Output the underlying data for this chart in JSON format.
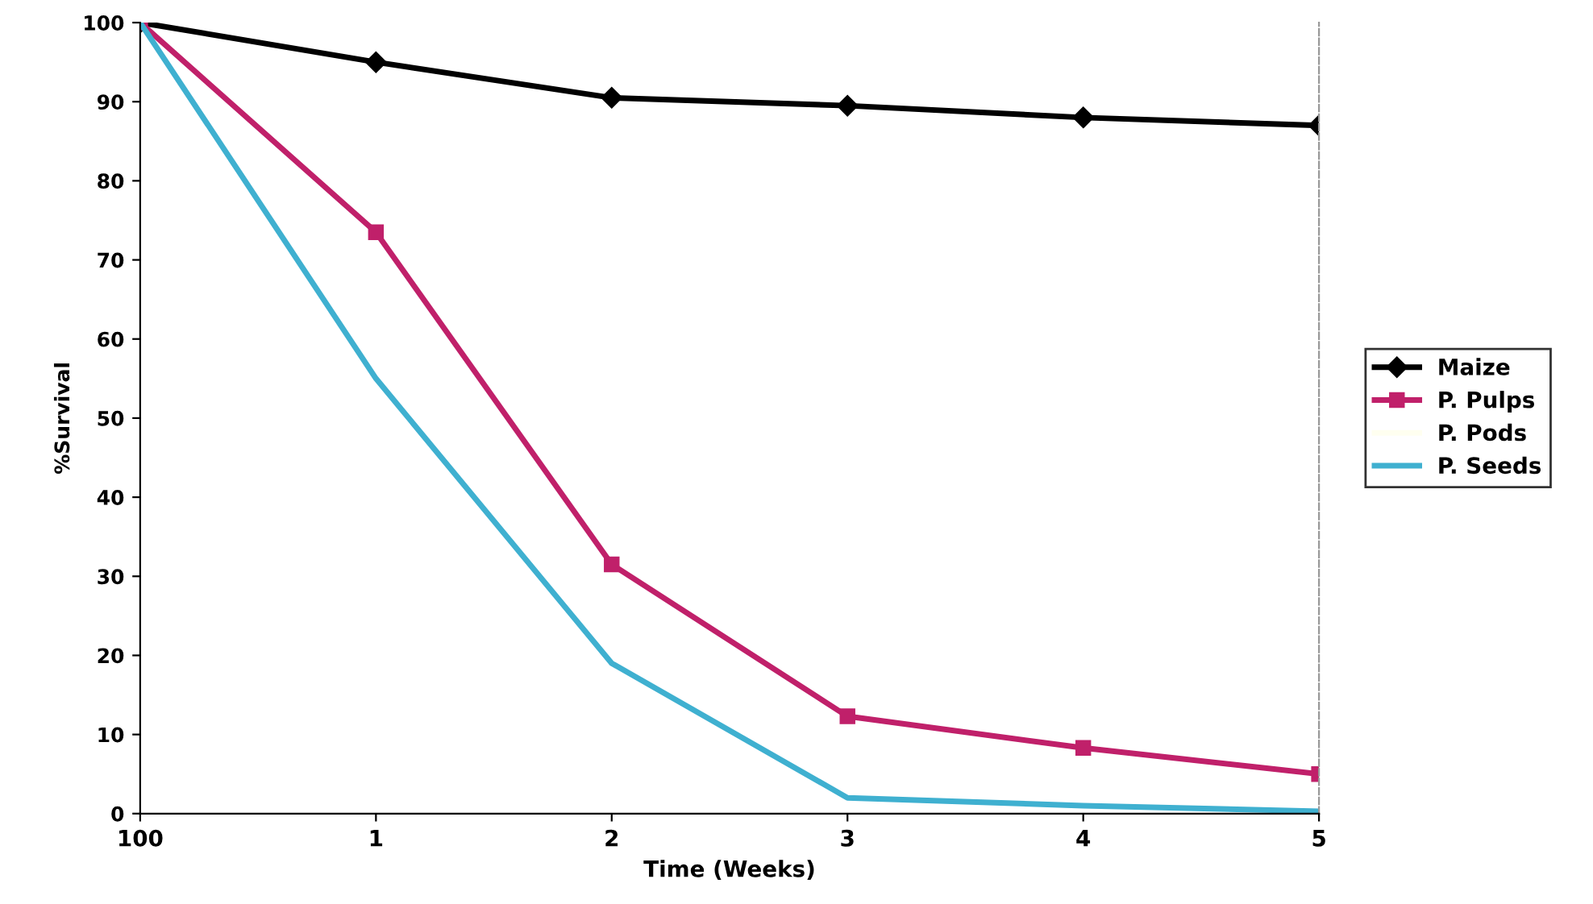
{
  "chart_data": {
    "type": "line",
    "xlabel": "Time (Weeks)",
    "ylabel": "%Survival",
    "categories": [
      "100",
      "1",
      "2",
      "3",
      "4",
      "5"
    ],
    "ylim": [
      0,
      100
    ],
    "yticks": [
      0,
      10,
      20,
      30,
      40,
      50,
      60,
      70,
      80,
      90,
      100
    ],
    "grid": false,
    "legend": "right",
    "series": [
      {
        "name": "Maize",
        "color": "#000000",
        "marker": "diamond",
        "values": [
          100,
          95,
          90.5,
          89.5,
          88,
          87
        ]
      },
      {
        "name": "P. Pulps",
        "color": "#c0206a",
        "marker": "square",
        "values": [
          100,
          73.5,
          31.5,
          12.3,
          8.3,
          5
        ]
      },
      {
        "name": "P. Pods",
        "color": "#fffff0",
        "marker": "none",
        "values": [
          null,
          null,
          null,
          null,
          null,
          null
        ]
      },
      {
        "name": "P. Seeds",
        "color": "#3fb0d0",
        "marker": "none",
        "values": [
          100,
          55,
          19,
          2,
          1,
          0.3
        ]
      }
    ]
  }
}
